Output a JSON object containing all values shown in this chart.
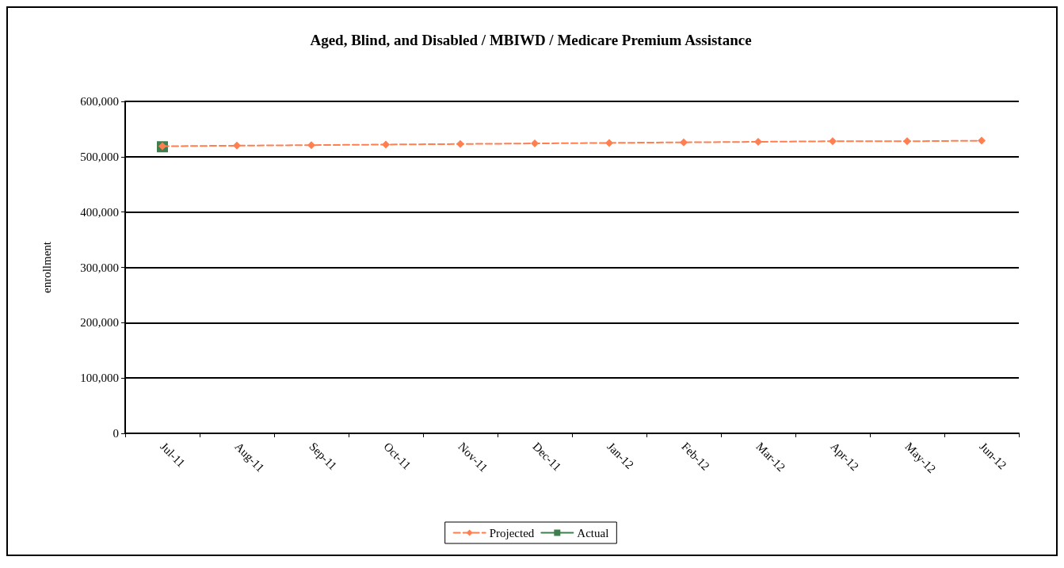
{
  "chart_data": {
    "type": "line",
    "title": "Aged, Blind, and Disabled / MBIWD / Medicare Premium Assistance",
    "ylabel": "enrollment",
    "categories": [
      "Jul-11",
      "Aug-11",
      "Sep-11",
      "Oct-11",
      "Nov-11",
      "Dec-11",
      "Jan-12",
      "Feb-12",
      "Mar-12",
      "Apr-12",
      "May-12",
      "Jun-12"
    ],
    "series": [
      {
        "name": "Projected",
        "color": "#ff7f50",
        "marker": "diamond",
        "line_style": "dashed",
        "values": [
          519000,
          520000,
          521000,
          522000,
          523000,
          524000,
          525000,
          526000,
          527000,
          528000,
          528000,
          529000
        ]
      },
      {
        "name": "Actual",
        "color": "#3f7f4f",
        "marker": "square",
        "line_style": "solid",
        "values": [
          518000,
          null,
          null,
          null,
          null,
          null,
          null,
          null,
          null,
          null,
          null,
          null
        ]
      }
    ],
    "ylim": [
      0,
      600000
    ],
    "yticks": [
      0,
      {
        "value": 100000,
        "label": "100,000"
      },
      {
        "value": 200000,
        "label": "200,000"
      },
      {
        "value": 300000,
        "label": "300,000"
      },
      {
        "value": 400000,
        "label": "400,000"
      },
      {
        "value": 500000,
        "label": "500,000"
      },
      {
        "value": 600000,
        "label": "600,000"
      }
    ],
    "grid": "y",
    "legend": "bottom"
  }
}
